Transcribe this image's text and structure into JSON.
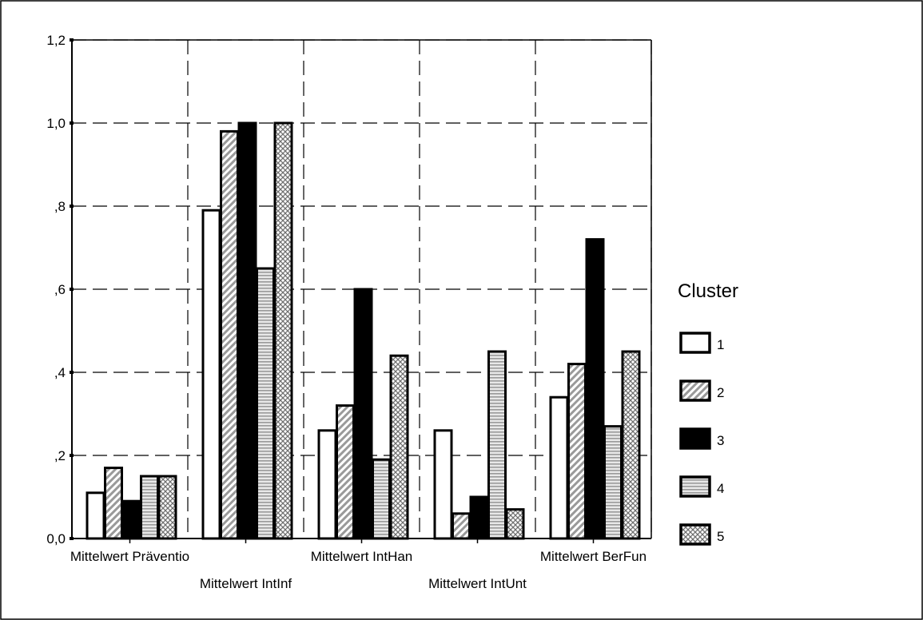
{
  "chart_data": {
    "type": "bar",
    "categories": [
      "Mittelwert Präventio",
      "Mittelwert IntInf",
      "Mittelwert IntHan",
      "Mittelwert IntUnt",
      "Mittelwert BerFun"
    ],
    "series": [
      {
        "name": "1",
        "values": [
          0.11,
          0.79,
          0.26,
          0.26,
          0.34
        ]
      },
      {
        "name": "2",
        "values": [
          0.17,
          0.98,
          0.32,
          0.06,
          0.42
        ]
      },
      {
        "name": "3",
        "values": [
          0.09,
          1.0,
          0.6,
          0.1,
          0.72
        ]
      },
      {
        "name": "4",
        "values": [
          0.15,
          0.65,
          0.19,
          0.45,
          0.27
        ]
      },
      {
        "name": "5",
        "values": [
          0.15,
          1.0,
          0.44,
          0.07,
          0.45
        ]
      }
    ],
    "yticks": [
      "0,0",
      ",2",
      ",4",
      ",6",
      ",8",
      "1,0",
      "1,2"
    ],
    "ylim": [
      0,
      1.2
    ],
    "grid": true,
    "legend_title": "Cluster",
    "legend_position": "right"
  },
  "colors": {
    "series_fills": [
      "#ffffff",
      "#d4d4d4",
      "#000000",
      "#c8c8c8",
      "#e6e6e6"
    ],
    "axis": "#000000"
  }
}
